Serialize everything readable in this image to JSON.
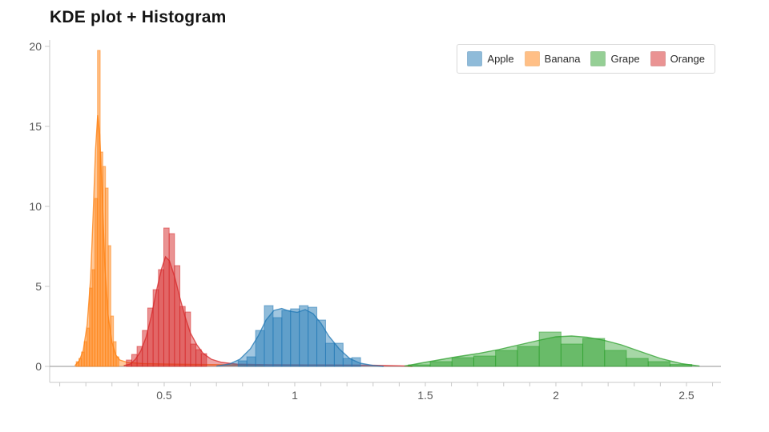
{
  "title": "KDE plot + Histogram",
  "legend": {
    "items": [
      {
        "label": "Apple",
        "fill": "rgba(31,119,180,0.5)",
        "stroke": "#8fb7d4"
      },
      {
        "label": "Banana",
        "fill": "rgba(255,127,14,0.5)",
        "stroke": "#f5c18e"
      },
      {
        "label": "Grape",
        "fill": "rgba(44,160,44,0.5)",
        "stroke": "#9cc99c"
      },
      {
        "label": "Orange",
        "fill": "rgba(214,39,40,0.5)",
        "stroke": "#dd9a9a"
      }
    ]
  },
  "chart_data": {
    "type": "histogram+kde",
    "title": "KDE plot + Histogram",
    "xlabel": "",
    "ylabel": "",
    "grid": false,
    "legend_position": "top-right",
    "xlim": [
      0.0614,
      2.632
    ],
    "ylim": [
      -1,
      20.4
    ],
    "x_ticks": [
      0.5,
      1,
      1.5,
      2,
      2.5
    ],
    "x_tick_labels": [
      "0.5",
      "1",
      "1.5",
      "2",
      "2.5"
    ],
    "x_minor_tick_step": 0.1,
    "y_ticks": [
      0,
      5,
      10,
      15,
      20
    ],
    "y_tick_labels": [
      "0",
      "5",
      "10",
      "15",
      "20"
    ],
    "axis_color": "#c8c8c8",
    "zero_line_color": "#a6a6a6",
    "tick_label_color": "#5a5a5a",
    "series": [
      {
        "name": "Banana",
        "color": "#ff7f0e",
        "hist": {
          "bin_start": 0.163,
          "bin_width": 0.0102,
          "heights": [
            0.3,
            0.5,
            0.9,
            1.55,
            2.4,
            4.9,
            6.05,
            10.5,
            19.75,
            13.4,
            12.5,
            11.15,
            7.55,
            3.15,
            1.55,
            0.6
          ]
        },
        "kde": {
          "x": [
            0.158,
            0.175,
            0.19,
            0.205,
            0.218,
            0.228,
            0.237,
            0.245,
            0.253,
            0.262,
            0.272,
            0.285,
            0.3,
            0.315,
            0.33,
            0.36,
            0.42,
            0.5,
            0.6,
            0.75,
            0.88
          ],
          "y": [
            0.05,
            0.35,
            1.0,
            2.6,
            5.5,
            9.5,
            13.5,
            15.7,
            14.5,
            11.0,
            6.5,
            3.2,
            1.5,
            0.7,
            0.4,
            0.25,
            0.18,
            0.15,
            0.13,
            0.1,
            0.02
          ]
        }
      },
      {
        "name": "Orange",
        "color": "#d62728",
        "hist": {
          "bin_start": 0.355,
          "bin_width": 0.0205,
          "heights": [
            0.4,
            0.75,
            1.25,
            2.25,
            3.65,
            4.8,
            6.05,
            8.65,
            8.3,
            6.3,
            3.75,
            3.4,
            1.4,
            1.05,
            0.8
          ]
        },
        "kde": {
          "x": [
            0.345,
            0.37,
            0.39,
            0.41,
            0.43,
            0.45,
            0.47,
            0.49,
            0.505,
            0.52,
            0.54,
            0.56,
            0.58,
            0.6,
            0.625,
            0.65,
            0.68,
            0.72,
            0.78,
            0.9,
            1.1,
            1.3,
            1.42,
            1.45
          ],
          "y": [
            0.05,
            0.15,
            0.45,
            0.95,
            1.8,
            3.1,
            4.7,
            6.1,
            6.85,
            6.6,
            5.6,
            4.3,
            3.1,
            2.1,
            1.35,
            0.8,
            0.45,
            0.25,
            0.14,
            0.1,
            0.09,
            0.07,
            0.03,
            0.0
          ]
        }
      },
      {
        "name": "Apple",
        "color": "#1f77b4",
        "hist": {
          "bin_start": 0.783,
          "bin_width": 0.0335,
          "heights": [
            0.35,
            0.6,
            2.25,
            3.8,
            3.05,
            3.5,
            3.6,
            3.8,
            3.7,
            2.9,
            1.45,
            1.45,
            0.5,
            0.55
          ]
        },
        "kde": {
          "x": [
            0.7,
            0.75,
            0.79,
            0.83,
            0.86,
            0.89,
            0.92,
            0.95,
            0.98,
            1.01,
            1.04,
            1.07,
            1.1,
            1.13,
            1.17,
            1.21,
            1.25,
            1.3,
            1.34
          ],
          "y": [
            0.02,
            0.15,
            0.45,
            1.1,
            1.9,
            2.9,
            3.5,
            3.62,
            3.45,
            3.38,
            3.55,
            3.3,
            2.7,
            1.9,
            1.1,
            0.5,
            0.2,
            0.06,
            0.0
          ]
        }
      },
      {
        "name": "Grape",
        "color": "#2ca02c",
        "hist": {
          "bin_start": 1.435,
          "bin_width": 0.0835,
          "heights": [
            0.1,
            0.3,
            0.55,
            0.65,
            1.0,
            1.25,
            2.15,
            1.4,
            1.75,
            1.0,
            0.5,
            0.3,
            0.12
          ]
        },
        "kde": {
          "x": [
            1.42,
            1.48,
            1.55,
            1.62,
            1.7,
            1.78,
            1.86,
            1.94,
            2.0,
            2.06,
            2.12,
            2.18,
            2.25,
            2.32,
            2.4,
            2.48,
            2.55
          ],
          "y": [
            0.02,
            0.2,
            0.4,
            0.6,
            0.8,
            1.05,
            1.35,
            1.65,
            1.85,
            1.9,
            1.82,
            1.65,
            1.35,
            0.95,
            0.5,
            0.18,
            0.02
          ]
        }
      }
    ]
  }
}
